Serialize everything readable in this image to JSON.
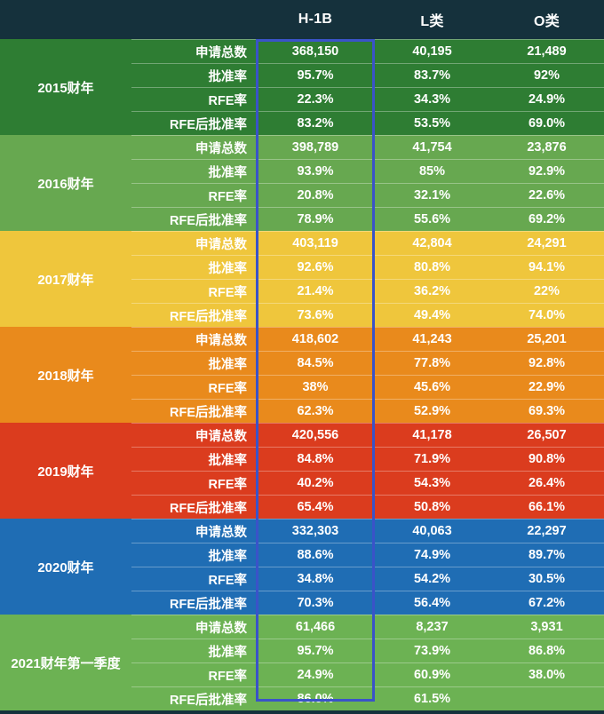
{
  "style": {
    "page_bg": "#15313c",
    "header_bg": "#15313c",
    "text_color": "#ffffff",
    "highlight_border": "#3a53c8"
  },
  "chart_data": {
    "type": "table",
    "title": "",
    "column_headers": [
      "H-1B",
      "L类",
      "O类"
    ],
    "row_labels": [
      "申请总数",
      "批准率",
      "RFE率",
      "RFE后批准率"
    ],
    "highlighted_column": "H-1B",
    "groups": [
      {
        "period": "2015财年",
        "color": "#2e7d33",
        "values": [
          [
            "368,150",
            "40,195",
            "21,489"
          ],
          [
            "95.7%",
            "83.7%",
            "92%"
          ],
          [
            "22.3%",
            "34.3%",
            "24.9%"
          ],
          [
            "83.2%",
            "53.5%",
            "69.0%"
          ]
        ]
      },
      {
        "period": "2016财年",
        "color": "#67a850",
        "values": [
          [
            "398,789",
            "41,754",
            "23,876"
          ],
          [
            "93.9%",
            "85%",
            "92.9%"
          ],
          [
            "20.8%",
            "32.1%",
            "22.6%"
          ],
          [
            "78.9%",
            "55.6%",
            "69.2%"
          ]
        ]
      },
      {
        "period": "2017财年",
        "color": "#efc63c",
        "values": [
          [
            "403,119",
            "42,804",
            "24,291"
          ],
          [
            "92.6%",
            "80.8%",
            "94.1%"
          ],
          [
            "21.4%",
            "36.2%",
            "22%"
          ],
          [
            "73.6%",
            "49.4%",
            "74.0%"
          ]
        ]
      },
      {
        "period": "2018财年",
        "color": "#e98a1c",
        "values": [
          [
            "418,602",
            "41,243",
            "25,201"
          ],
          [
            "84.5%",
            "77.8%",
            "92.8%"
          ],
          [
            "38%",
            "45.6%",
            "22.9%"
          ],
          [
            "62.3%",
            "52.9%",
            "69.3%"
          ]
        ]
      },
      {
        "period": "2019财年",
        "color": "#db3c1e",
        "values": [
          [
            "420,556",
            "41,178",
            "26,507"
          ],
          [
            "84.8%",
            "71.9%",
            "90.8%"
          ],
          [
            "40.2%",
            "54.3%",
            "26.4%"
          ],
          [
            "65.4%",
            "50.8%",
            "66.1%"
          ]
        ]
      },
      {
        "period": "2020财年",
        "color": "#1f6db4",
        "values": [
          [
            "332,303",
            "40,063",
            "22,297"
          ],
          [
            "88.6%",
            "74.9%",
            "89.7%"
          ],
          [
            "34.8%",
            "54.2%",
            "30.5%"
          ],
          [
            "70.3%",
            "56.4%",
            "67.2%"
          ]
        ]
      },
      {
        "period": "2021财年第一季度",
        "color": "#6cb253",
        "values": [
          [
            "61,466",
            "8,237",
            "3,931"
          ],
          [
            "95.7%",
            "73.9%",
            "86.8%"
          ],
          [
            "24.9%",
            "60.9%",
            "38.0%"
          ],
          [
            "86.0%",
            "61.5%",
            ""
          ]
        ]
      }
    ]
  }
}
